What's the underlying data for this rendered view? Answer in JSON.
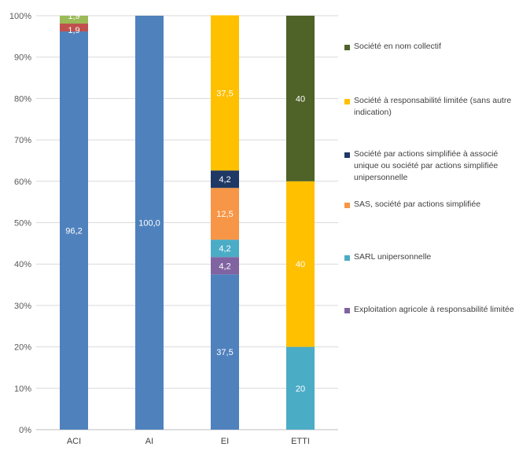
{
  "chart_data": {
    "type": "bar",
    "stacked": true,
    "normalized": true,
    "categories": [
      "ACI",
      "AI",
      "EI",
      "ETTI"
    ],
    "ylim": [
      0,
      100
    ],
    "yticks": [
      "0%",
      "10%",
      "20%",
      "30%",
      "40%",
      "50%",
      "60%",
      "70%",
      "80%",
      "90%",
      "100%"
    ],
    "grid": true,
    "legend_position": "right",
    "series": [
      {
        "key": "autre",
        "color": "#4f81bd",
        "values": [
          96.2,
          100.0,
          37.5,
          0
        ],
        "labels": [
          "96,2",
          "100,0",
          "37,5",
          ""
        ]
      },
      {
        "key": "rouge",
        "color": "#c0504d",
        "values": [
          1.9,
          0,
          0,
          0
        ],
        "labels": [
          "1,9",
          "",
          "",
          ""
        ]
      },
      {
        "key": "vert_clair",
        "color": "#9bbb59",
        "values": [
          1.9,
          0,
          0,
          0
        ],
        "labels": [
          "1,9",
          "",
          "",
          ""
        ]
      },
      {
        "name": "Exploitation agricole à responsabilité limitée",
        "color": "#8064a2",
        "values": [
          0,
          0,
          4.2,
          0
        ],
        "labels": [
          "",
          "",
          "4,2",
          ""
        ]
      },
      {
        "name": "SARL unipersonnelle",
        "color": "#4bacc6",
        "values": [
          0,
          0,
          4.2,
          20
        ],
        "labels": [
          "",
          "",
          "4,2",
          "20"
        ]
      },
      {
        "name": "SAS, société par actions simplifiée",
        "color": "#f79646",
        "values": [
          0,
          0,
          12.5,
          0
        ],
        "labels": [
          "",
          "",
          "12,5",
          ""
        ]
      },
      {
        "name": "Société par actions simplifiée à associé unique ou société par actions simplifiée unipersonnelle",
        "color": "#1f3864",
        "values": [
          0,
          0,
          4.2,
          0
        ],
        "labels": [
          "",
          "",
          "4,2",
          ""
        ]
      },
      {
        "name": "Société à responsabilité limitée (sans autre indication)",
        "color": "#ffc000",
        "values": [
          0,
          0,
          37.5,
          40
        ],
        "labels": [
          "",
          "",
          "37,5",
          "40"
        ]
      },
      {
        "name": "Société en nom collectif",
        "color": "#4f6228",
        "values": [
          0,
          0,
          0,
          40
        ],
        "labels": [
          "",
          "",
          "",
          "40"
        ]
      }
    ]
  },
  "legend": [
    {
      "label": "Société en nom collectif",
      "color": "#4f6228"
    },
    {
      "label": "Société à responsabilité limitée (sans autre indication)",
      "color": "#ffc000"
    },
    {
      "label": "Société par actions simplifiée à associé unique ou société par actions simplifiée unipersonnelle",
      "color": "#1f3864"
    },
    {
      "label": "SAS, société par actions simplifiée",
      "color": "#f79646"
    },
    {
      "label": "SARL unipersonnelle",
      "color": "#4bacc6"
    },
    {
      "label": "Exploitation agricole à responsabilité limitée",
      "color": "#8064a2"
    }
  ]
}
